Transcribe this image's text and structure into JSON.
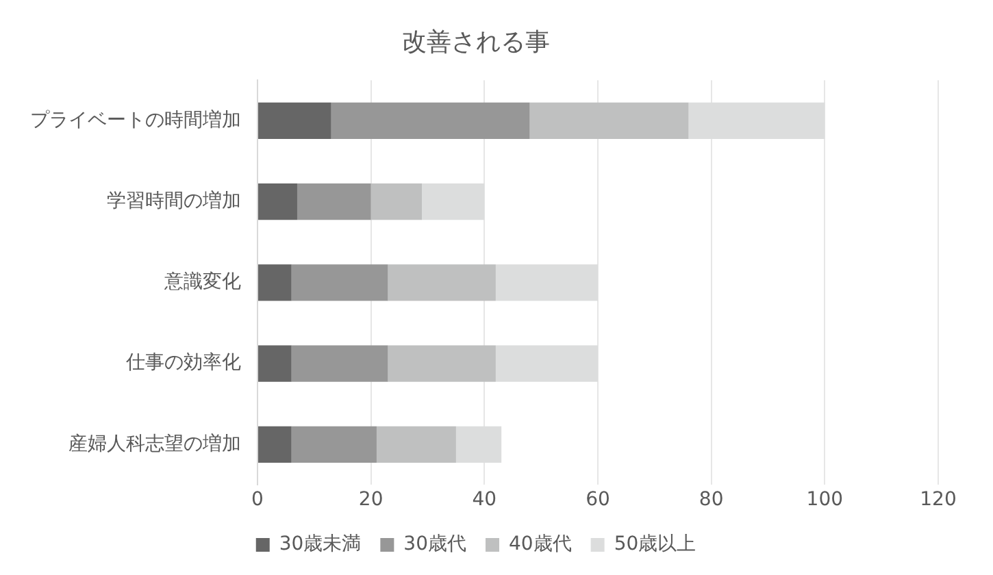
{
  "chart_data": {
    "type": "bar",
    "title": "改善される事",
    "orientation": "horizontal",
    "stacked": true,
    "categories": [
      "プライベートの時間増加",
      "学習時間の増加",
      "意識変化",
      "仕事の効率化",
      "産婦人科志望の増加"
    ],
    "series": [
      {
        "name": "30歳未満",
        "color": "#666666",
        "values": [
          13,
          7,
          6,
          6,
          6
        ]
      },
      {
        "name": "30歳代",
        "color": "#979797",
        "values": [
          35,
          13,
          17,
          17,
          15
        ]
      },
      {
        "name": "40歳代",
        "color": "#bfc0c0",
        "values": [
          28,
          9,
          19,
          19,
          14
        ]
      },
      {
        "name": "50歳以上",
        "color": "#dcdddd",
        "values": [
          24,
          11,
          18,
          18,
          8
        ]
      }
    ],
    "xlim": [
      0,
      120
    ],
    "xticks": [
      0,
      20,
      40,
      60,
      80,
      100,
      120
    ],
    "grid": "x",
    "legend": "bottom"
  }
}
